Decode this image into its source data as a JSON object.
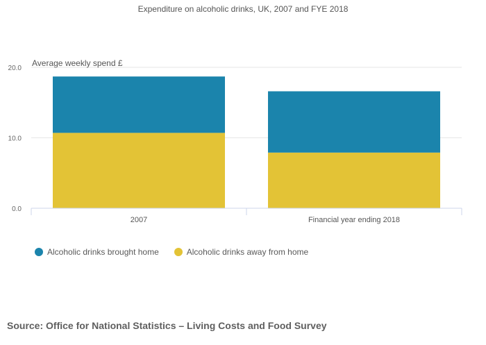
{
  "chart_data": {
    "type": "bar",
    "stacked": true,
    "title": "Expenditure on alcoholic drinks, UK, 2007 and FYE 2018",
    "ylabel": "Average weekly spend £",
    "xlabel": "",
    "categories": [
      "2007",
      "Financial year ending 2018"
    ],
    "ylim": [
      0,
      20
    ],
    "yticks": [
      "0.0",
      "10.0",
      "20.0"
    ],
    "ytick_values": [
      0,
      10,
      20
    ],
    "grid": true,
    "legend_position": "bottom-left",
    "series": [
      {
        "name": "Alcoholic drinks away from home",
        "color": "#e3c336",
        "values": [
          10.7,
          7.9
        ]
      },
      {
        "name": "Alcoholic drinks brought home",
        "color": "#1b84ac",
        "values": [
          8.0,
          8.7
        ]
      }
    ]
  },
  "legend": [
    {
      "label": "Alcoholic drinks brought home",
      "color": "#1b84ac"
    },
    {
      "label": "Alcoholic drinks away from home",
      "color": "#e3c336"
    }
  ],
  "source": "Source: Office for National Statistics – Living Costs and Food Survey"
}
